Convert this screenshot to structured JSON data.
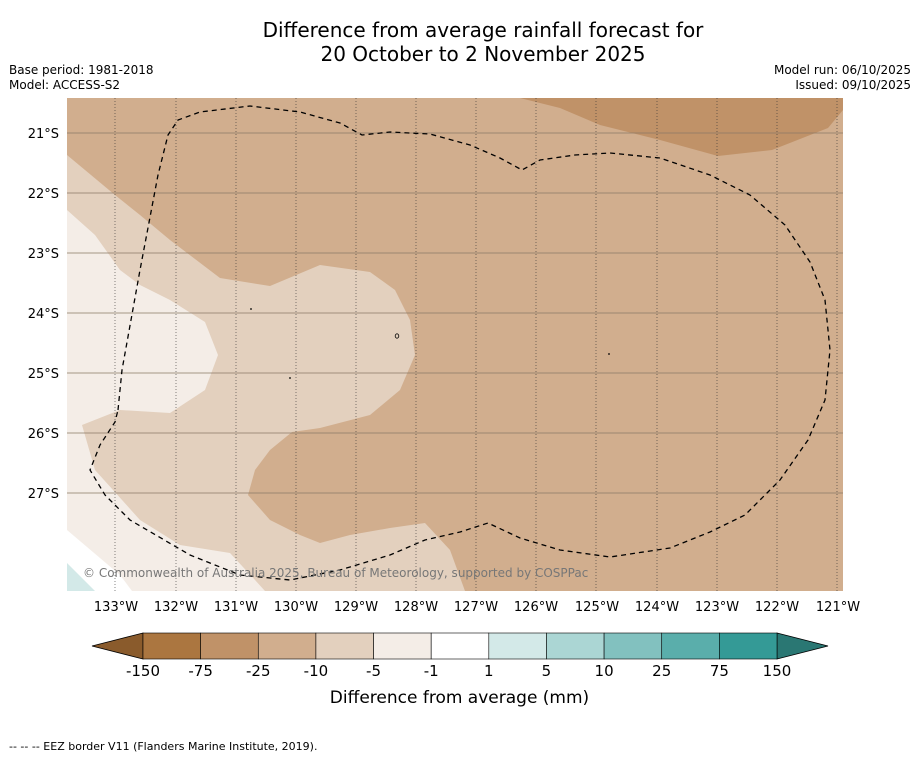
{
  "title": {
    "line1": "Difference from average rainfall forecast for",
    "line2": "20 October to 2 November 2025"
  },
  "meta": {
    "base_period": "Base period: 1981-2018",
    "model": "Model: ACCESS-S2",
    "model_run": "Model run: 06/10/2025",
    "issued": "Issued: 09/10/2025"
  },
  "map": {
    "lat_labels": [
      "21°S",
      "22°S",
      "23°S",
      "24°S",
      "25°S",
      "26°S",
      "27°S"
    ],
    "lon_labels": [
      "133°W",
      "132°W",
      "131°W",
      "130°W",
      "129°W",
      "128°W",
      "127°W",
      "126°W",
      "125°W",
      "124°W",
      "123°W",
      "122°W",
      "121°W"
    ],
    "copyright": "© Commonwealth of Australia 2025, Bureau of Meteorology, supported by COSPPac"
  },
  "colorbar": {
    "tick_labels": [
      "-150",
      "-75",
      "-25",
      "-10",
      "-5",
      "-1",
      "1",
      "5",
      "10",
      "25",
      "75",
      "150"
    ],
    "colors": [
      "#ab7640",
      "#c09268",
      "#d1ae8e",
      "#e3d0be",
      "#f4ede7",
      "#ffffff",
      "#d3e9e8",
      "#abd6d4",
      "#82c1bf",
      "#5aaeab",
      "#349a96"
    ],
    "under_color": "#8a5b2c",
    "over_color": "#2a7773",
    "label": "Difference from average (mm)"
  },
  "footnote": "--  --  -- EEZ border V11 (Flanders Marine Institute, 2019)."
}
